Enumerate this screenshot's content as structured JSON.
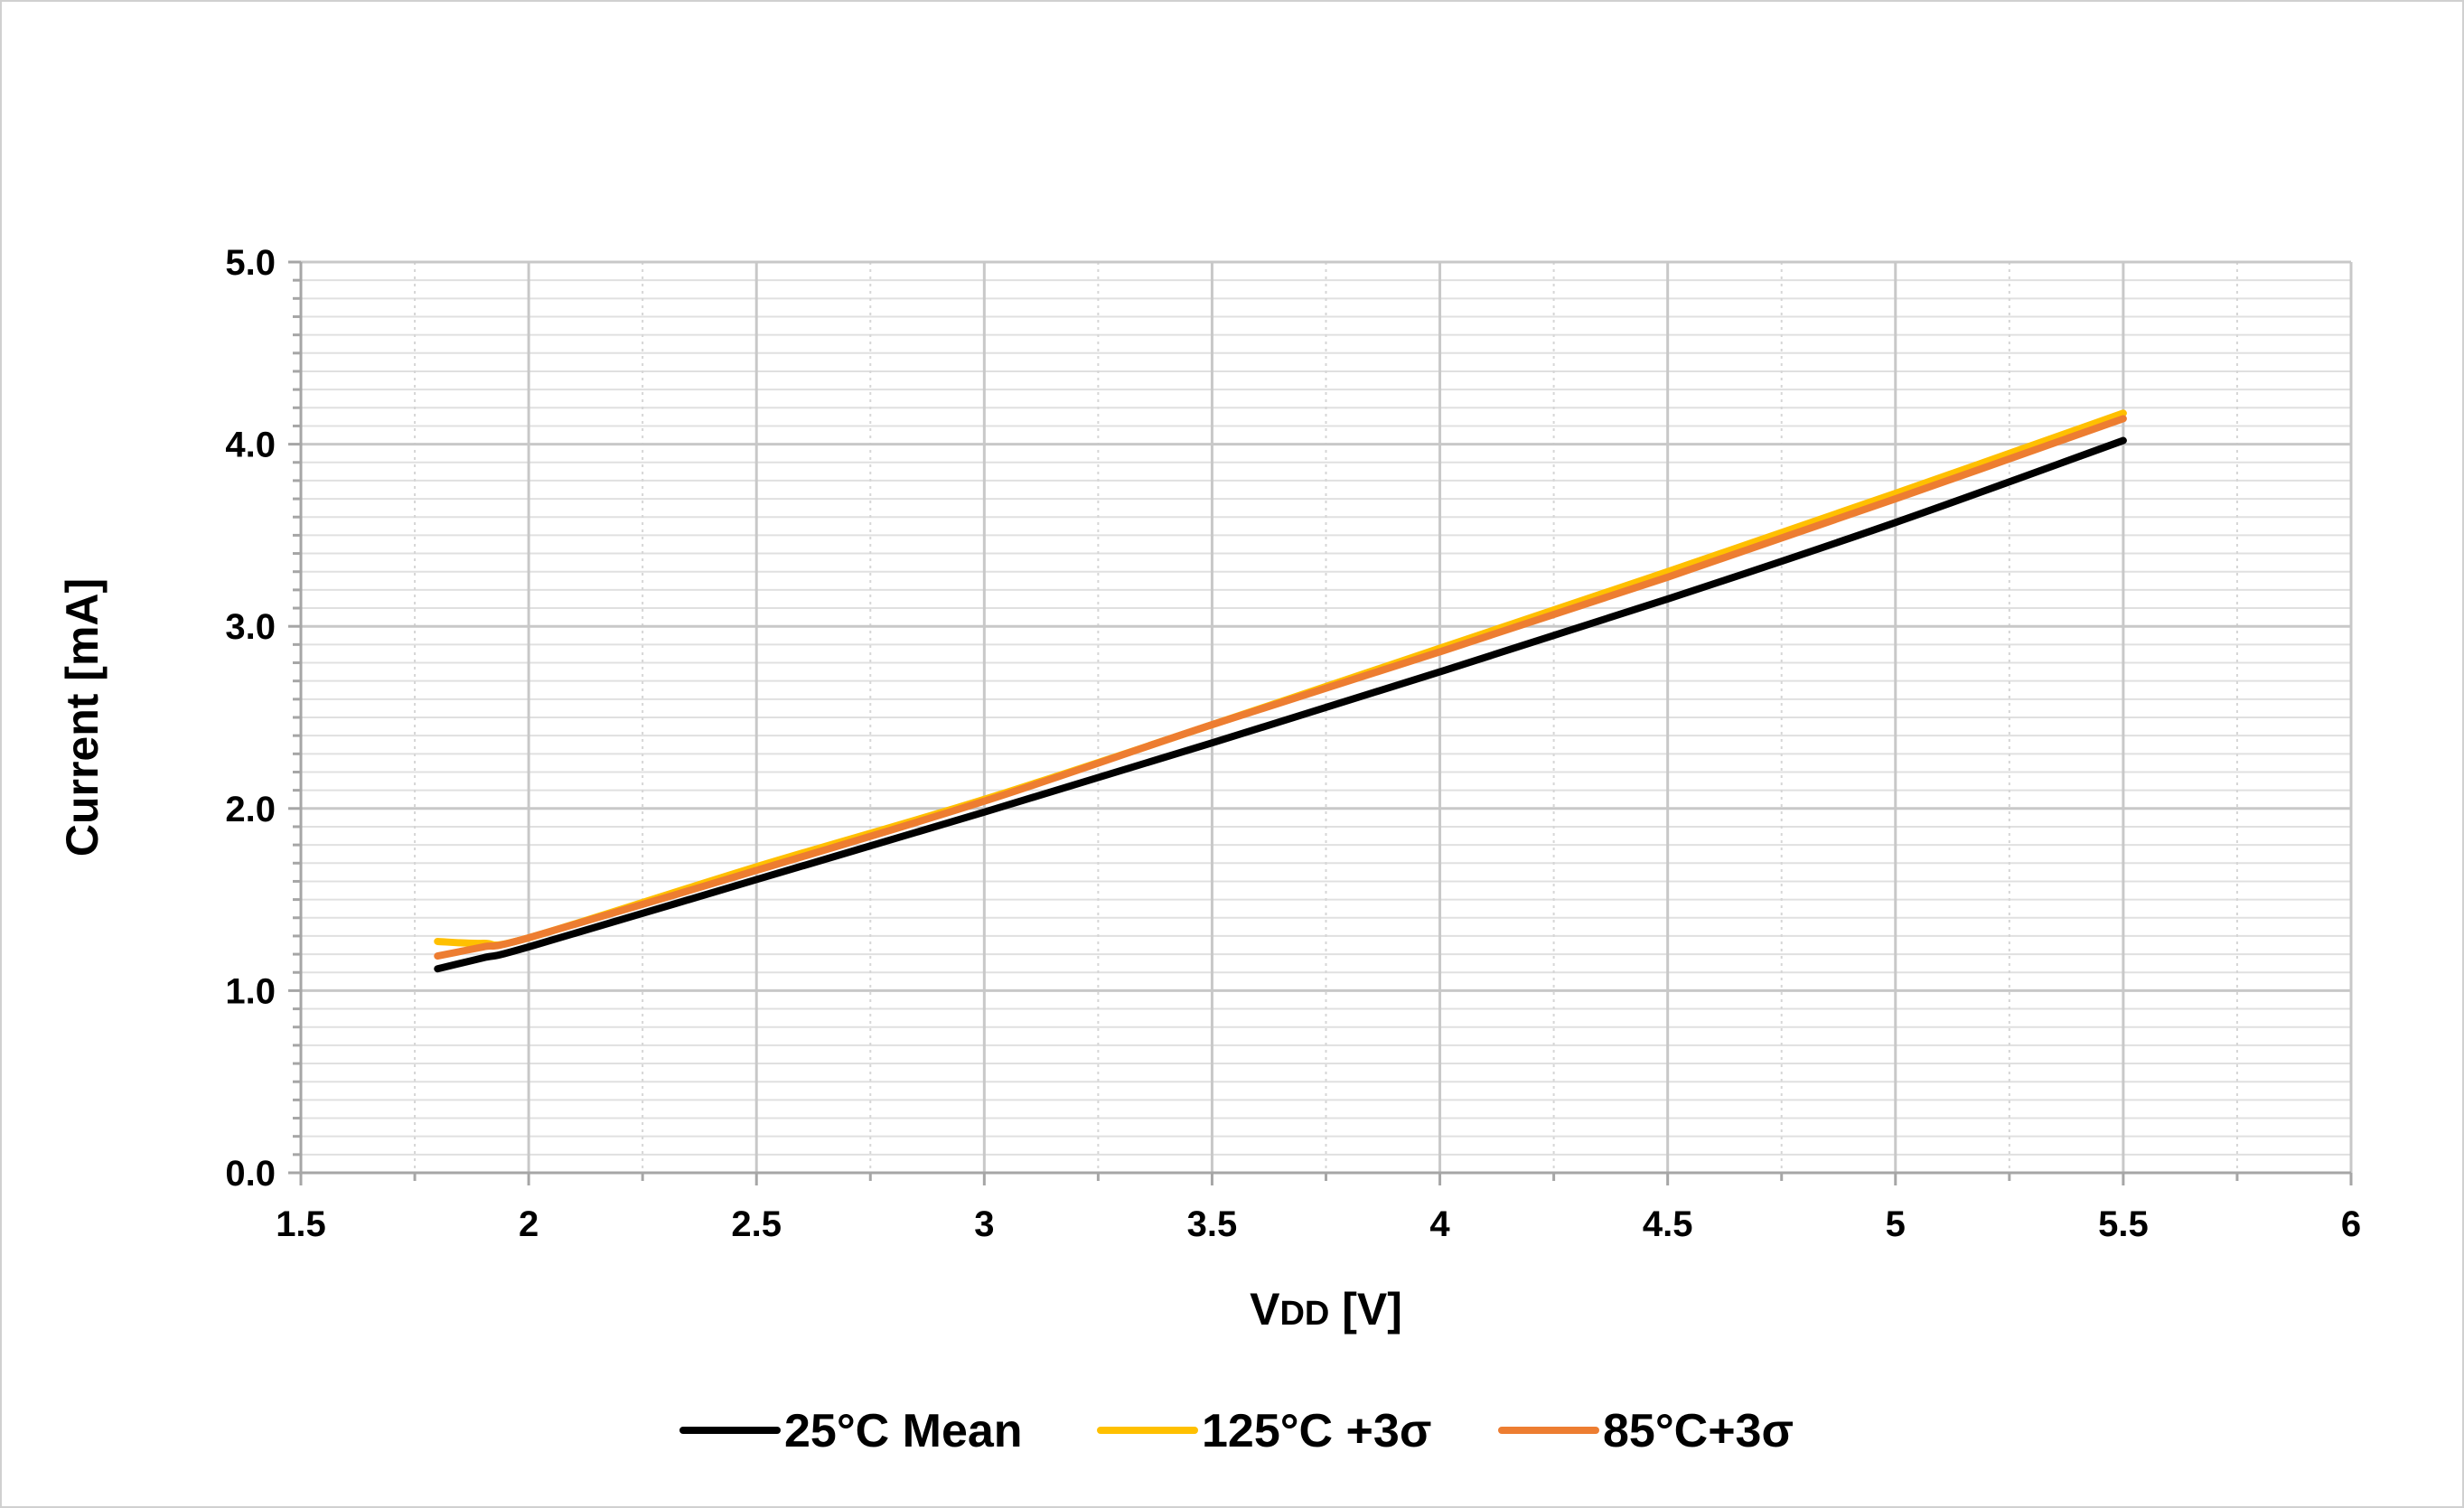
{
  "chart_data": {
    "type": "line",
    "title": "",
    "xlabel_main": "V",
    "xlabel_sub": "DD",
    "xlabel_unit": " [V]",
    "ylabel": "Current [mA]",
    "xlim": [
      1.5,
      6
    ],
    "ylim": [
      0,
      5
    ],
    "x_ticks": [
      "1.5",
      "2",
      "2.5",
      "3",
      "3.5",
      "4",
      "4.5",
      "5",
      "5.5",
      "6"
    ],
    "y_ticks": [
      "0.0",
      "1.0",
      "2.0",
      "3.0",
      "4.0",
      "5.0"
    ],
    "grid": true,
    "legend_position": "bottom",
    "x": [
      1.8,
      1.9,
      2.0,
      2.5,
      3.0,
      3.5,
      4.0,
      4.5,
      5.0,
      5.5
    ],
    "series": [
      {
        "name": "25°C Mean",
        "color": "#000000",
        "values": [
          1.12,
          1.18,
          1.24,
          1.61,
          1.98,
          2.36,
          2.75,
          3.15,
          3.57,
          4.02
        ]
      },
      {
        "name": "125°C +3σ",
        "color": "#FFC000",
        "values": [
          1.27,
          1.26,
          1.29,
          1.68,
          2.05,
          2.46,
          2.88,
          3.3,
          3.73,
          4.17
        ]
      },
      {
        "name": "85°C+3σ",
        "color": "#ED7D31",
        "values": [
          1.19,
          1.24,
          1.29,
          1.66,
          2.04,
          2.46,
          2.86,
          3.27,
          3.7,
          4.14
        ]
      }
    ]
  }
}
